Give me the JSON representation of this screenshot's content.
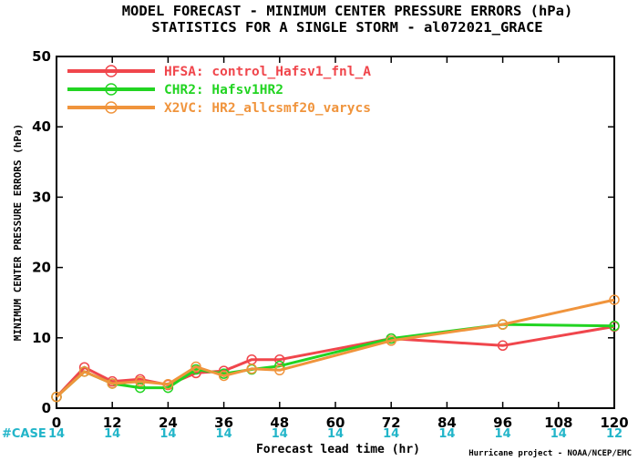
{
  "chart_data": {
    "type": "line",
    "title": "MODEL FORECAST - MINIMUM CENTER PRESSURE ERRORS (hPa)",
    "subtitle": "STATISTICS FOR A SINGLE STORM - al072021_GRACE",
    "xlabel": "Forecast lead time (hr)",
    "ylabel": "MINIMUM CENTER PRESSURE ERRORS (hPa)",
    "xlim": [
      0,
      120
    ],
    "ylim": [
      0,
      50
    ],
    "x_ticks": [
      0,
      12,
      24,
      36,
      48,
      60,
      72,
      84,
      96,
      108,
      120
    ],
    "y_ticks": [
      0,
      10,
      20,
      30,
      40,
      50
    ],
    "grid": false,
    "legend_position": "top-left",
    "series": [
      {
        "name": "HFSA: control_Hafsv1_fnl_A",
        "color": "#f0464c",
        "x": [
          0,
          6,
          12,
          18,
          24,
          30,
          36,
          42,
          48,
          72,
          96,
          120
        ],
        "y": [
          1.6,
          5.8,
          3.8,
          4.1,
          3.3,
          5.0,
          5.3,
          6.9,
          6.9,
          9.9,
          8.9,
          11.6
        ]
      },
      {
        "name": "CHR2: Hafsv1HR2",
        "color": "#22d422",
        "x": [
          0,
          6,
          12,
          18,
          24,
          30,
          36,
          42,
          48,
          72,
          96,
          120
        ],
        "y": [
          1.6,
          5.2,
          3.5,
          2.9,
          2.9,
          5.5,
          4.9,
          5.5,
          6.0,
          9.9,
          11.9,
          11.7
        ]
      },
      {
        "name": "X2VC: HR2_allcsmf20_varycs",
        "color": "#f0943c",
        "x": [
          0,
          6,
          12,
          18,
          24,
          30,
          36,
          42,
          48,
          72,
          96,
          120
        ],
        "y": [
          1.6,
          5.2,
          3.5,
          3.8,
          3.4,
          5.9,
          4.6,
          5.6,
          5.4,
          9.6,
          11.9,
          15.4
        ]
      }
    ],
    "case_label": "#CASE",
    "case_counts": [
      {
        "x": 0,
        "label": "14"
      },
      {
        "x": 12,
        "label": "14"
      },
      {
        "x": 24,
        "label": "14"
      },
      {
        "x": 36,
        "label": "14"
      },
      {
        "x": 48,
        "label": "14"
      },
      {
        "x": 60,
        "label": "14"
      },
      {
        "x": 72,
        "label": "14"
      },
      {
        "x": 84,
        "label": "14"
      },
      {
        "x": 96,
        "label": "14"
      },
      {
        "x": 108,
        "label": "14"
      },
      {
        "x": 120,
        "label": "12"
      }
    ],
    "credit": "Hurricane project - NOAA/NCEP/EMC"
  }
}
